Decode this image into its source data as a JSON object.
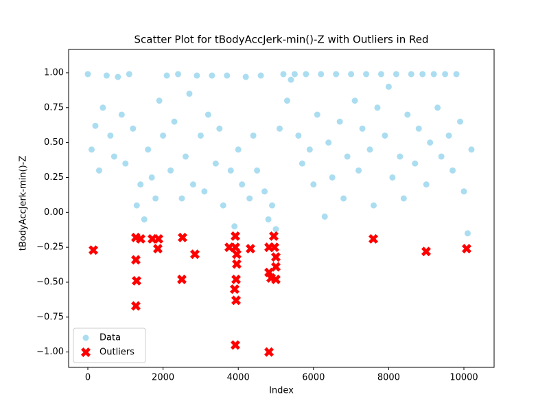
{
  "chart_data": {
    "type": "scatter",
    "title": "Scatter Plot for tBodyAccJerk-min()-Z with Outliers in Red",
    "x_label": "Index",
    "y_label": "tBodyAccJerk-min()-Z",
    "xlim": [
      -511,
      10803
    ],
    "ylim": [
      -1.11,
      1.167
    ],
    "xticks": [
      0,
      2000,
      4000,
      6000,
      8000,
      10000
    ],
    "yticks": [
      {
        "value": 1,
        "label": "1.00"
      },
      {
        "value": 0.75,
        "label": "0.75"
      },
      {
        "value": 0.5,
        "label": "0.50"
      },
      {
        "value": 0.25,
        "label": "0.25"
      },
      {
        "value": 0,
        "label": "0.00"
      },
      {
        "value": -0.25,
        "label": "−0.25"
      },
      {
        "value": -0.5,
        "label": "−0.50"
      },
      {
        "value": -0.75,
        "label": "−0.75"
      },
      {
        "value": -1,
        "label": "−1.00"
      }
    ],
    "legend": "lower left",
    "series": [
      {
        "name": "Data",
        "color": "#87ceeb",
        "marker": "circle",
        "x": [
          0,
          100,
          200,
          300,
          400,
          500,
          600,
          700,
          800,
          900,
          1000,
          1100,
          1200,
          1300,
          1400,
          1500,
          1600,
          1700,
          1800,
          1900,
          2000,
          2100,
          2200,
          2300,
          2400,
          2500,
          2600,
          2700,
          2800,
          2900,
          3000,
          3100,
          3200,
          3300,
          3400,
          3500,
          3600,
          3700,
          3800,
          3900,
          4000,
          4100,
          4200,
          4300,
          4400,
          4500,
          4600,
          4700,
          4800,
          4900,
          5000,
          5100,
          5200,
          5300,
          5400,
          5500,
          5600,
          5700,
          5800,
          5900,
          6000,
          6100,
          6200,
          6300,
          6400,
          6500,
          6600,
          6700,
          6800,
          6900,
          7000,
          7100,
          7200,
          7300,
          7400,
          7500,
          7600,
          7700,
          7800,
          7900,
          8000,
          8100,
          8200,
          8300,
          8400,
          8500,
          8600,
          8700,
          8800,
          8900,
          9000,
          9100,
          9200,
          9300,
          9400,
          9500,
          9600,
          9700,
          9800,
          9900,
          10000,
          10100,
          10200
        ],
        "values": [
          0.99,
          0.45,
          0.62,
          0.3,
          0.75,
          0.98,
          0.55,
          0.4,
          0.97,
          0.7,
          0.35,
          0.99,
          0.6,
          0.05,
          0.2,
          -0.05,
          0.45,
          0.25,
          0.1,
          0.8,
          0.55,
          0.98,
          0.3,
          0.65,
          0.99,
          0.1,
          0.4,
          0.85,
          0.2,
          0.98,
          0.55,
          0.15,
          0.7,
          0.98,
          0.35,
          0.6,
          0.05,
          0.98,
          0.3,
          -0.1,
          0.45,
          0.2,
          0.97,
          0.1,
          0.55,
          0.3,
          0.98,
          0.15,
          -0.05,
          0.05,
          -0.12,
          0.6,
          0.99,
          0.8,
          0.95,
          0.99,
          0.55,
          0.35,
          0.99,
          0.45,
          0.2,
          0.7,
          0.99,
          -0.03,
          0.5,
          0.25,
          0.99,
          0.65,
          0.1,
          0.4,
          0.99,
          0.8,
          0.3,
          0.6,
          0.99,
          0.45,
          0.05,
          0.75,
          0.99,
          0.55,
          0.9,
          0.25,
          0.99,
          0.4,
          0.1,
          0.7,
          0.99,
          0.35,
          0.6,
          0.99,
          0.2,
          0.5,
          0.99,
          0.75,
          0.4,
          0.99,
          0.55,
          0.3,
          0.99,
          0.65,
          0.15,
          -0.15,
          0.45
        ]
      },
      {
        "name": "Outliers",
        "color": "#ff0000",
        "marker": "x",
        "x": [
          146,
          1277,
          1277,
          1296,
          1277,
          1405,
          1715,
          1880,
          1861,
          2518,
          2500,
          2847,
          3759,
          3923,
          3923,
          3960,
          3960,
          3942,
          3905,
          3942,
          3923,
          4325,
          4818,
          4818,
          4818,
          4945,
          4964,
          5000,
          5000,
          4872,
          5000,
          7591,
          8996,
          10073
        ],
        "values": [
          -0.27,
          -0.18,
          -0.34,
          -0.49,
          -0.67,
          -0.19,
          -0.19,
          -0.19,
          -0.26,
          -0.18,
          -0.48,
          -0.3,
          -0.25,
          -0.17,
          -0.25,
          -0.3,
          -0.37,
          -0.48,
          -0.55,
          -0.63,
          -0.95,
          -0.26,
          -0.25,
          -0.43,
          -1.0,
          -0.17,
          -0.25,
          -0.32,
          -0.39,
          -0.47,
          -0.48,
          -0.19,
          -0.28,
          -0.26
        ]
      }
    ]
  }
}
